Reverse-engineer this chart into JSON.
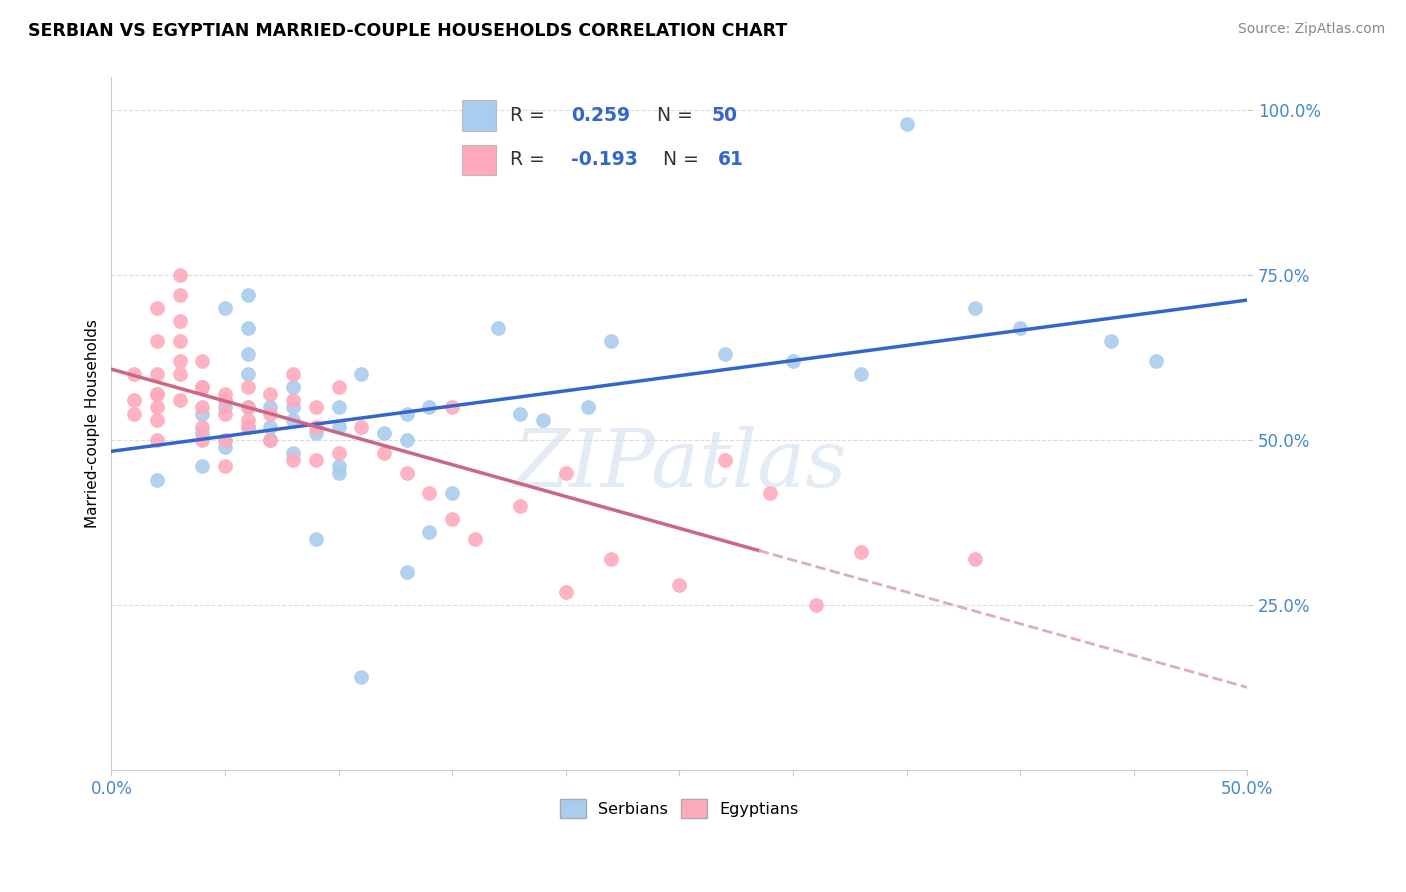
{
  "title": "SERBIAN VS EGYPTIAN MARRIED-COUPLE HOUSEHOLDS CORRELATION CHART",
  "source": "Source: ZipAtlas.com",
  "ylabel": "Married-couple Households",
  "yticks": [
    "25.0%",
    "50.0%",
    "75.0%",
    "100.0%"
  ],
  "ytick_vals": [
    0.25,
    0.5,
    0.75,
    1.0
  ],
  "xlim": [
    0.0,
    0.5
  ],
  "ylim": [
    0.0,
    1.05
  ],
  "serbian_color": "#aaccee",
  "egyptian_color": "#ffaabb",
  "trend_serbian_color": "#3366cc",
  "trend_egyptian_solid_color": "#cc6688",
  "trend_egyptian_dash_color": "#ddaacc",
  "R_serbian": 0.259,
  "N_serbian": 50,
  "R_egyptian": -0.193,
  "N_egyptian": 61,
  "watermark": "ZIPatlas",
  "background_color": "#ffffff",
  "grid_color": "#dddddd",
  "tick_color": "#4488cc",
  "serbian_x": [
    0.02,
    0.04,
    0.04,
    0.05,
    0.05,
    0.05,
    0.05,
    0.05,
    0.06,
    0.06,
    0.06,
    0.06,
    0.06,
    0.07,
    0.07,
    0.07,
    0.08,
    0.08,
    0.08,
    0.09,
    0.09,
    0.1,
    0.1,
    0.1,
    0.11,
    0.11,
    0.12,
    0.13,
    0.13,
    0.14,
    0.14,
    0.15,
    0.17,
    0.18,
    0.19,
    0.21,
    0.22,
    0.27,
    0.3,
    0.33,
    0.35,
    0.38,
    0.4,
    0.44,
    0.46,
    0.13,
    0.1,
    0.08,
    0.06,
    0.04
  ],
  "serbian_y": [
    0.44,
    0.51,
    0.54,
    0.5,
    0.56,
    0.49,
    0.55,
    0.7,
    0.55,
    0.6,
    0.63,
    0.67,
    0.72,
    0.5,
    0.52,
    0.55,
    0.53,
    0.55,
    0.58,
    0.35,
    0.51,
    0.55,
    0.46,
    0.52,
    0.14,
    0.6,
    0.51,
    0.3,
    0.54,
    0.36,
    0.55,
    0.42,
    0.67,
    0.54,
    0.53,
    0.55,
    0.65,
    0.63,
    0.62,
    0.6,
    0.98,
    0.7,
    0.67,
    0.65,
    0.62,
    0.5,
    0.45,
    0.48,
    0.52,
    0.46
  ],
  "egyptian_x": [
    0.01,
    0.01,
    0.01,
    0.02,
    0.02,
    0.02,
    0.02,
    0.02,
    0.02,
    0.02,
    0.02,
    0.03,
    0.03,
    0.03,
    0.03,
    0.03,
    0.03,
    0.03,
    0.04,
    0.04,
    0.04,
    0.04,
    0.04,
    0.04,
    0.05,
    0.05,
    0.05,
    0.05,
    0.05,
    0.06,
    0.06,
    0.06,
    0.06,
    0.07,
    0.07,
    0.07,
    0.08,
    0.08,
    0.08,
    0.09,
    0.09,
    0.09,
    0.1,
    0.1,
    0.11,
    0.13,
    0.14,
    0.15,
    0.16,
    0.18,
    0.2,
    0.22,
    0.25,
    0.27,
    0.29,
    0.31,
    0.33,
    0.38,
    0.2,
    0.15,
    0.12
  ],
  "egyptian_y": [
    0.56,
    0.6,
    0.54,
    0.57,
    0.55,
    0.53,
    0.5,
    0.7,
    0.57,
    0.6,
    0.65,
    0.75,
    0.72,
    0.68,
    0.65,
    0.62,
    0.6,
    0.56,
    0.58,
    0.62,
    0.55,
    0.52,
    0.5,
    0.58,
    0.57,
    0.54,
    0.56,
    0.5,
    0.46,
    0.55,
    0.53,
    0.58,
    0.52,
    0.57,
    0.5,
    0.54,
    0.56,
    0.47,
    0.6,
    0.55,
    0.52,
    0.47,
    0.58,
    0.48,
    0.52,
    0.45,
    0.42,
    0.38,
    0.35,
    0.4,
    0.27,
    0.32,
    0.28,
    0.47,
    0.42,
    0.25,
    0.33,
    0.32,
    0.45,
    0.55,
    0.48
  ]
}
